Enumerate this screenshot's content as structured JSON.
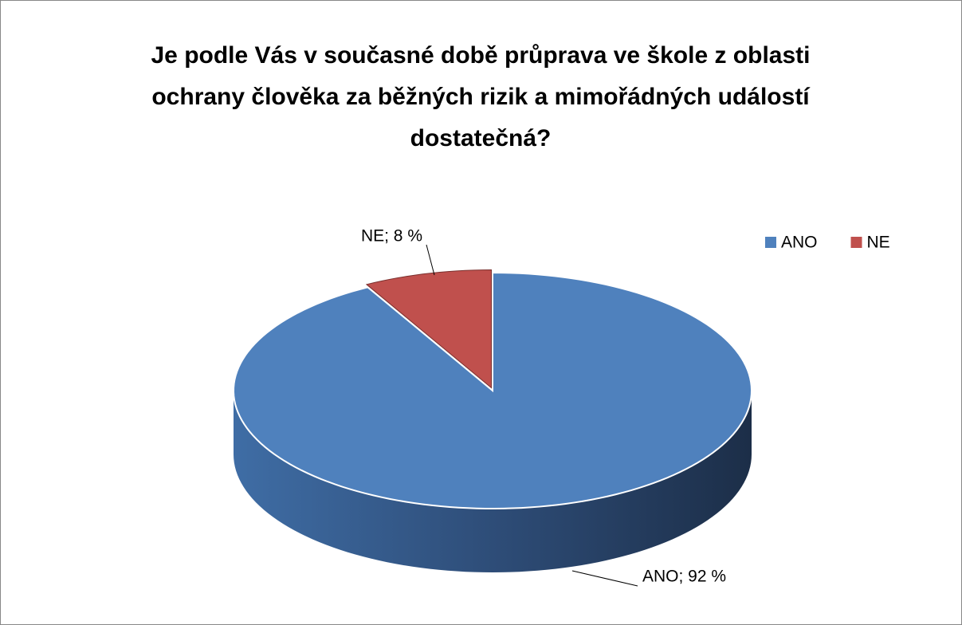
{
  "chart_data": {
    "type": "pie",
    "title": "Je podle Vás v současné době průprava ve škole z oblasti ochrany člověka za běžných rizik a mimořádných událostí dostatečná?",
    "categories": [
      "ANO",
      "NE"
    ],
    "values": [
      92,
      8
    ],
    "value_labels": [
      "ANO; 92 %",
      "NE; 8 %"
    ],
    "colors": [
      "#4f81bd",
      "#c0504d"
    ],
    "legend": "top-right"
  }
}
